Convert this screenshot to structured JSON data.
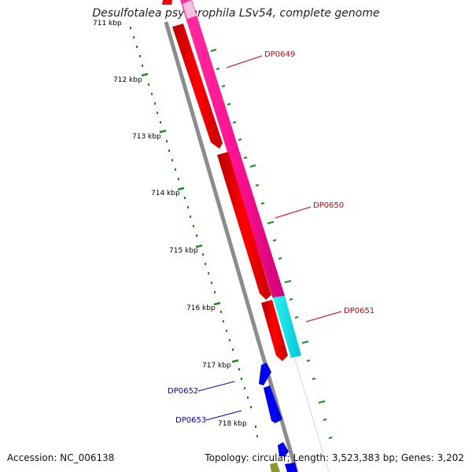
{
  "title": "Desulfotalea psychrophila LSv54, complete genome",
  "footer": {
    "accession": "Accession: NC_006138",
    "summary": "Topology: circular; Length: 3,523,383 bp; Genes: 3,202"
  },
  "ticks": [
    "711 kbp",
    "712 kbp",
    "713 kbp",
    "714 kbp",
    "715 kbp",
    "716 kbp",
    "717 kbp",
    "718 kbp"
  ],
  "genes": [
    {
      "label": "DP0649",
      "color": "#cc0000"
    },
    {
      "label": "DP0650",
      "color": "#cc0000"
    },
    {
      "label": "DP0651",
      "color": "#cc0000"
    },
    {
      "label": "DP0652",
      "color": "#0000aa"
    },
    {
      "label": "DP0653",
      "color": "#0000aa"
    }
  ],
  "colors": {
    "backbone": "#888888",
    "cds": "#ff0000",
    "blue_cds": "#0000ee",
    "pink_feature": "#ff1493",
    "cyan_feature": "#00e5ee",
    "tick_green": "#1a8a1a"
  }
}
